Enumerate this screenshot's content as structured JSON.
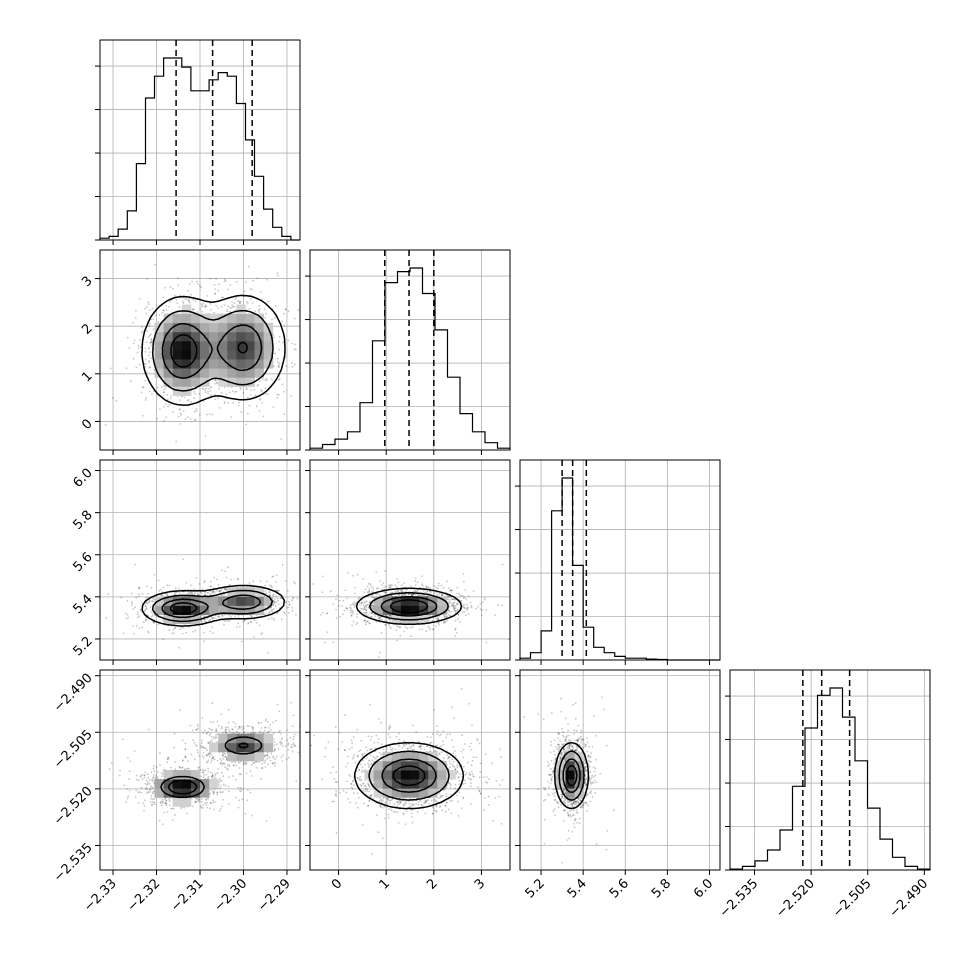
{
  "chart_data": {
    "type": "corner",
    "parameters": [
      {
        "range": [
          -2.333,
          -2.287
        ],
        "ticks": [
          -2.33,
          -2.32,
          -2.31,
          -2.3,
          -2.29
        ],
        "tick_labels": [
          "−2.33",
          "−2.32",
          "−2.31",
          "−2.30",
          "−2.29"
        ],
        "quantiles": [
          -2.3155,
          -2.3071,
          -2.298
        ],
        "histogram": [
          1,
          2,
          6,
          16,
          42,
          78,
          90,
          100,
          100,
          95,
          82,
          82,
          88,
          92,
          90,
          75,
          55,
          35,
          17,
          7,
          2,
          0
        ]
      },
      {
        "range": [
          -0.6,
          3.6
        ],
        "ticks": [
          0,
          1,
          2,
          3
        ],
        "tick_labels": [
          "0",
          "1",
          "2",
          "3"
        ],
        "quantiles": [
          0.97,
          1.48,
          2.0
        ],
        "histogram": [
          1,
          3,
          6,
          10,
          26,
          60,
          92,
          98,
          100,
          86,
          66,
          40,
          20,
          10,
          4,
          1
        ]
      },
      {
        "range": [
          5.1,
          6.05
        ],
        "ticks": [
          5.2,
          5.4,
          5.6,
          5.8,
          6.0
        ],
        "tick_labels": [
          "5.2",
          "5.4",
          "5.6",
          "5.8",
          "6.0"
        ],
        "quantiles": [
          5.3,
          5.35,
          5.415
        ],
        "histogram": [
          1,
          4,
          16,
          82,
          100,
          52,
          18,
          7,
          4,
          2,
          1,
          1,
          0.5,
          0.3,
          0,
          0,
          0,
          0,
          0
        ]
      },
      {
        "range": [
          -2.5415,
          -2.4885
        ],
        "ticks": [
          -2.535,
          -2.52,
          -2.505,
          -2.49
        ],
        "tick_labels": [
          "−2.535",
          "−2.520",
          "−2.505",
          "−2.490"
        ],
        "quantiles": [
          -2.5222,
          -2.5172,
          -2.5098
        ],
        "histogram": [
          0.5,
          2,
          5,
          11,
          22,
          46,
          78,
          96,
          100,
          84,
          60,
          34,
          17,
          7,
          2,
          0.5
        ]
      }
    ],
    "pairs": [
      {
        "row": 1,
        "col": 0,
        "modes": [
          {
            "x": -2.314,
            "y": 1.48,
            "sx": 0.0045,
            "sy": 0.55,
            "w": 1.0
          },
          {
            "x": -2.3,
            "y": 1.55,
            "sx": 0.0048,
            "sy": 0.55,
            "w": 0.85
          }
        ]
      },
      {
        "row": 2,
        "col": 0,
        "modes": [
          {
            "x": -2.314,
            "y": 5.345,
            "sx": 0.0045,
            "sy": 0.04,
            "w": 1.0
          },
          {
            "x": -2.3,
            "y": 5.375,
            "sx": 0.0048,
            "sy": 0.04,
            "w": 0.8
          }
        ]
      },
      {
        "row": 2,
        "col": 1,
        "modes": [
          {
            "x": 1.48,
            "y": 5.355,
            "sx": 0.52,
            "sy": 0.04,
            "w": 1.0
          }
        ]
      },
      {
        "row": 3,
        "col": 0,
        "modes": [
          {
            "x": -2.314,
            "y": -2.5195,
            "sx": 0.0045,
            "sy": 0.0025,
            "w": 1.0
          },
          {
            "x": -2.3,
            "y": -2.5085,
            "sx": 0.0048,
            "sy": 0.0025,
            "w": 0.8
          }
        ]
      },
      {
        "row": 3,
        "col": 1,
        "modes": [
          {
            "x": 1.48,
            "y": -2.5165,
            "sx": 0.55,
            "sy": 0.0042,
            "w": 1.0
          }
        ]
      },
      {
        "row": 3,
        "col": 2,
        "modes": [
          {
            "x": 5.345,
            "y": -2.5165,
            "sx": 0.038,
            "sy": 0.0042,
            "w": 1.0
          }
        ]
      }
    ]
  }
}
